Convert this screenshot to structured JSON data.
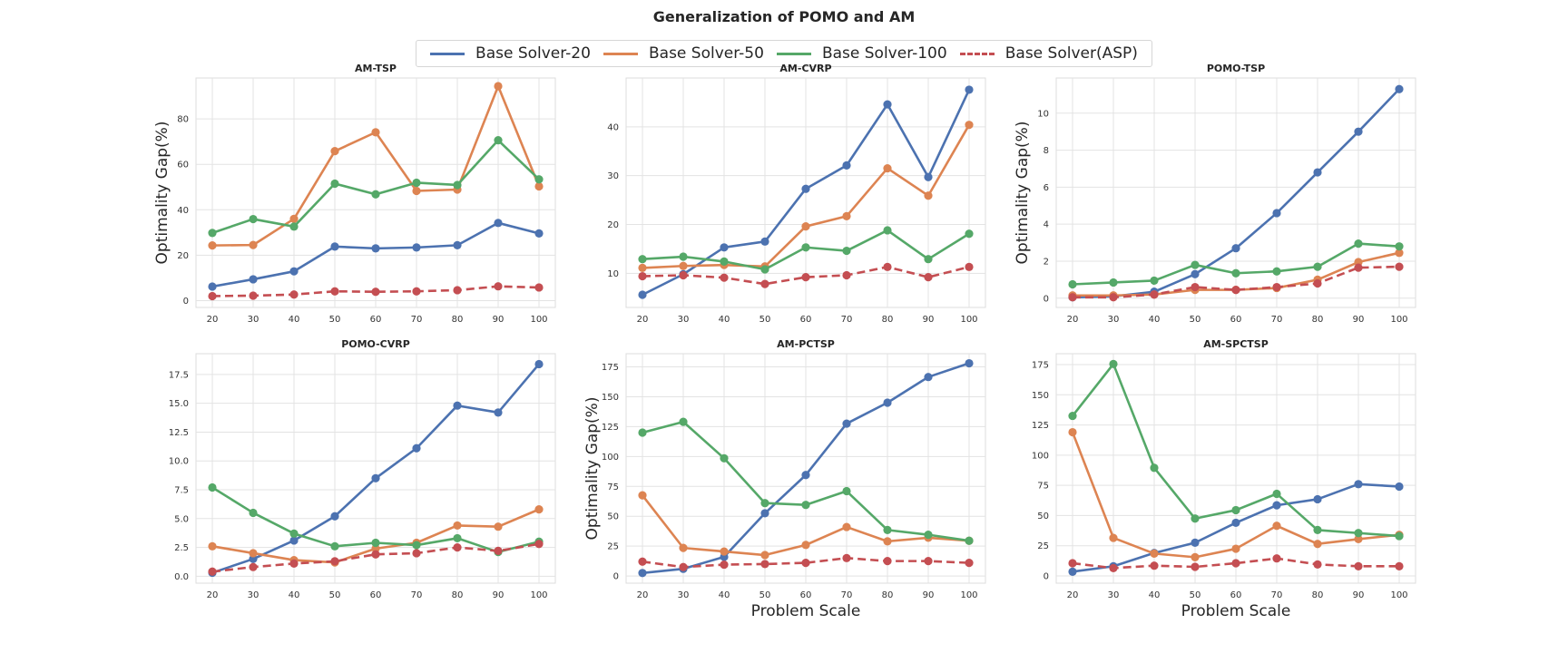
{
  "figure": {
    "title": "Generalization of POMO and AM"
  },
  "legend": {
    "entries": [
      {
        "label": "Base Solver-20",
        "color": "#4c72b0",
        "style": "solid"
      },
      {
        "label": "Base Solver-50",
        "color": "#dd8452",
        "style": "solid"
      },
      {
        "label": "Base Solver-100",
        "color": "#55a868",
        "style": "solid"
      },
      {
        "label": "Base Solver(ASP)",
        "color": "#c44e52",
        "style": "dashed"
      }
    ]
  },
  "chart_data": [
    {
      "type": "line",
      "title": "AM-TSP",
      "xlabel": "",
      "ylabel": "Optimality Gap(%)",
      "x": [
        20,
        30,
        40,
        50,
        60,
        70,
        80,
        90,
        100
      ],
      "ylim": [
        -3,
        98
      ],
      "yticks": [
        0,
        20,
        40,
        60,
        80
      ],
      "grid": true,
      "series": [
        {
          "name": "Base Solver-20",
          "values": [
            6.2,
            9.4,
            12.9,
            23.8,
            23.0,
            23.4,
            24.4,
            34.2,
            29.6
          ]
        },
        {
          "name": "Base Solver-50",
          "values": [
            24.3,
            24.5,
            36.0,
            65.8,
            74.1,
            48.3,
            48.9,
            94.4,
            50.3
          ]
        },
        {
          "name": "Base Solver-100",
          "values": [
            29.8,
            35.9,
            32.6,
            51.5,
            46.8,
            51.9,
            50.9,
            70.6,
            53.4
          ]
        },
        {
          "name": "Base Solver(ASP)",
          "values": [
            2.0,
            2.2,
            2.7,
            4.1,
            3.9,
            4.1,
            4.6,
            6.3,
            5.8
          ]
        }
      ]
    },
    {
      "type": "line",
      "title": "AM-CVRP",
      "xlabel": "",
      "ylabel": "",
      "x": [
        20,
        30,
        40,
        50,
        60,
        70,
        80,
        90,
        100
      ],
      "ylim": [
        3,
        50
      ],
      "yticks": [
        10,
        20,
        30,
        40
      ],
      "grid": true,
      "series": [
        {
          "name": "Base Solver-20",
          "values": [
            5.6,
            9.8,
            15.3,
            16.5,
            27.3,
            32.1,
            44.6,
            29.7,
            47.6
          ]
        },
        {
          "name": "Base Solver-50",
          "values": [
            11.1,
            11.5,
            11.7,
            11.4,
            19.6,
            21.7,
            31.5,
            25.9,
            40.4
          ]
        },
        {
          "name": "Base Solver-100",
          "values": [
            12.9,
            13.4,
            12.4,
            10.8,
            15.3,
            14.6,
            18.8,
            12.9,
            18.1
          ]
        },
        {
          "name": "Base Solver(ASP)",
          "values": [
            9.4,
            9.6,
            9.1,
            7.8,
            9.2,
            9.6,
            11.3,
            9.2,
            11.3
          ]
        }
      ]
    },
    {
      "type": "line",
      "title": "POMO-TSP",
      "xlabel": "",
      "ylabel": "Optimality Gap(%)",
      "x": [
        20,
        30,
        40,
        50,
        60,
        70,
        80,
        90,
        100
      ],
      "ylim": [
        -0.5,
        11.9
      ],
      "yticks": [
        0,
        2,
        4,
        6,
        8,
        10
      ],
      "grid": true,
      "series": [
        {
          "name": "Base Solver-20",
          "values": [
            0.05,
            0.1,
            0.35,
            1.3,
            2.7,
            4.6,
            6.8,
            9.0,
            11.3
          ]
        },
        {
          "name": "Base Solver-50",
          "values": [
            0.15,
            0.15,
            0.2,
            0.45,
            0.45,
            0.55,
            1.0,
            1.95,
            2.45
          ]
        },
        {
          "name": "Base Solver-100",
          "values": [
            0.75,
            0.85,
            0.95,
            1.8,
            1.35,
            1.45,
            1.7,
            2.95,
            2.8
          ]
        },
        {
          "name": "Base Solver(ASP)",
          "values": [
            0.05,
            0.05,
            0.2,
            0.6,
            0.45,
            0.6,
            0.8,
            1.65,
            1.7
          ]
        }
      ]
    },
    {
      "type": "line",
      "title": "POMO-CVRP",
      "xlabel": "",
      "ylabel": "",
      "x": [
        20,
        30,
        40,
        50,
        60,
        70,
        80,
        90,
        100
      ],
      "ylim": [
        -0.6,
        19.3
      ],
      "yticks": [
        0.0,
        2.5,
        5.0,
        7.5,
        10.0,
        12.5,
        15.0,
        17.5
      ],
      "grid": true,
      "series": [
        {
          "name": "Base Solver-20",
          "values": [
            0.3,
            1.5,
            3.1,
            5.2,
            8.5,
            11.1,
            14.8,
            14.2,
            18.4
          ]
        },
        {
          "name": "Base Solver-50",
          "values": [
            2.6,
            2.0,
            1.4,
            1.2,
            2.4,
            2.9,
            4.4,
            4.3,
            5.8
          ]
        },
        {
          "name": "Base Solver-100",
          "values": [
            7.7,
            5.5,
            3.7,
            2.6,
            2.9,
            2.7,
            3.3,
            2.1,
            3.0
          ]
        },
        {
          "name": "Base Solver(ASP)",
          "values": [
            0.4,
            0.8,
            1.1,
            1.3,
            1.9,
            2.0,
            2.5,
            2.2,
            2.8
          ]
        }
      ]
    },
    {
      "type": "line",
      "title": "AM-PCTSP",
      "xlabel": "Problem Scale",
      "ylabel": "Optimality Gap(%)",
      "x": [
        20,
        30,
        40,
        50,
        60,
        70,
        80,
        90,
        100
      ],
      "ylim": [
        -6,
        186
      ],
      "yticks": [
        0,
        25,
        50,
        75,
        100,
        125,
        150,
        175
      ],
      "grid": true,
      "series": [
        {
          "name": "Base Solver-20",
          "values": [
            2.5,
            6.0,
            16.0,
            52.5,
            84.5,
            127.5,
            145.0,
            166.5,
            178.0
          ]
        },
        {
          "name": "Base Solver-50",
          "values": [
            67.5,
            23.5,
            20.5,
            17.5,
            26.0,
            41.0,
            29.0,
            32.0,
            29.5
          ]
        },
        {
          "name": "Base Solver-100",
          "values": [
            120.0,
            129.0,
            98.5,
            61.0,
            59.5,
            71.0,
            38.5,
            34.5,
            29.5
          ]
        },
        {
          "name": "Base Solver(ASP)",
          "values": [
            12.0,
            7.5,
            9.5,
            10.0,
            11.0,
            15.0,
            12.5,
            12.5,
            11.0
          ]
        }
      ]
    },
    {
      "type": "line",
      "title": "AM-SPCTSP",
      "xlabel": "Problem Scale",
      "ylabel": "",
      "x": [
        20,
        30,
        40,
        50,
        60,
        70,
        80,
        90,
        100
      ],
      "ylim": [
        -6,
        184
      ],
      "yticks": [
        0,
        25,
        50,
        75,
        100,
        125,
        150,
        175
      ],
      "grid": true,
      "series": [
        {
          "name": "Base Solver-20",
          "values": [
            3.5,
            8.0,
            19.0,
            27.5,
            44.0,
            58.5,
            63.5,
            76.0,
            74.0
          ]
        },
        {
          "name": "Base Solver-50",
          "values": [
            119.0,
            31.5,
            18.5,
            15.5,
            22.5,
            41.5,
            26.5,
            30.5,
            34.0
          ]
        },
        {
          "name": "Base Solver-100",
          "values": [
            132.5,
            175.5,
            89.5,
            47.5,
            54.5,
            68.0,
            38.0,
            35.5,
            33.0
          ]
        },
        {
          "name": "Base Solver(ASP)",
          "values": [
            10.5,
            6.5,
            8.5,
            7.5,
            10.5,
            14.5,
            9.5,
            8.0,
            8.0
          ]
        }
      ]
    }
  ]
}
